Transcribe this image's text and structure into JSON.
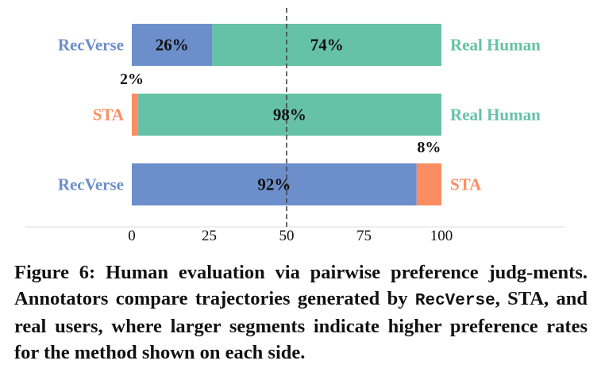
{
  "chart_data": {
    "type": "bar",
    "orientation": "horizontal",
    "stacked": true,
    "xlim": [
      0,
      100
    ],
    "x_ticks": [
      "0",
      "25",
      "50",
      "75",
      "100"
    ],
    "reference_line": 50,
    "colors": {
      "RecVerse": "#6c8fcb",
      "Real Human": "#66c2a5",
      "STA": "#fc8d62"
    },
    "rows": [
      {
        "left_label": "RecVerse",
        "right_label": "Real Human",
        "left_value": 26,
        "right_value": 74,
        "left_text": "26%",
        "right_text": "74%",
        "left_color": "#6c8fcb",
        "right_color": "#66c2a5"
      },
      {
        "left_label": "STA",
        "right_label": "Real Human",
        "left_value": 2,
        "right_value": 98,
        "left_text": "2%",
        "right_text": "98%",
        "left_color": "#fc8d62",
        "right_color": "#66c2a5"
      },
      {
        "left_label": "RecVerse",
        "right_label": "STA",
        "left_value": 92,
        "right_value": 8,
        "left_text": "92%",
        "right_text": "8%",
        "left_color": "#6c8fcb",
        "right_color": "#fc8d62"
      }
    ]
  },
  "caption": {
    "prefix": "Figure 6: Human evaluation via pairwise preference judg-ments. Annotators compare trajectories generated by ",
    "code": "RecVerse",
    "suffix": ", STA, and real users, where larger segments indicate higher preference rates for the method shown on each side."
  }
}
